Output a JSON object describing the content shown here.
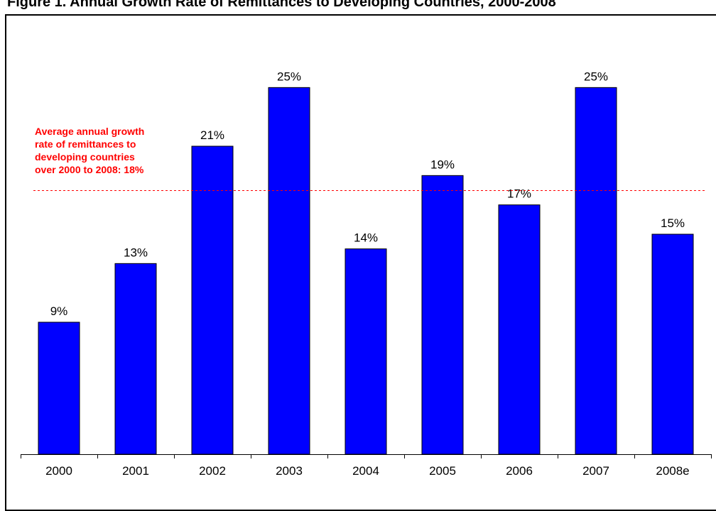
{
  "title": "Figure 1. Annual Growth Rate of Remittances to Developing Countries, 2000-2008",
  "annotation": {
    "lines": [
      "Average annual growth",
      "rate of remittances to",
      "developing countries",
      "over 2000 to 2008: 18%"
    ],
    "color": "#ff0000"
  },
  "colors": {
    "bar": "#0000ff",
    "bar_outline": "#000000",
    "average_line": "#ff0000"
  },
  "chart_data": {
    "type": "bar",
    "title": "Figure 1. Annual Growth Rate of Remittances to Developing Countries, 2000-2008",
    "xlabel": "",
    "ylabel": "",
    "categories": [
      "2000",
      "2001",
      "2002",
      "2003",
      "2004",
      "2005",
      "2006",
      "2007",
      "2008e"
    ],
    "values": [
      9,
      13,
      21,
      25,
      14,
      19,
      17,
      25,
      15
    ],
    "value_labels": [
      "9%",
      "13%",
      "21%",
      "25%",
      "14%",
      "19%",
      "17%",
      "25%",
      "15%"
    ],
    "reference_line": {
      "value": 18,
      "style": "dashed"
    },
    "ylim": [
      0,
      30
    ],
    "grid": false,
    "legend": "none"
  }
}
